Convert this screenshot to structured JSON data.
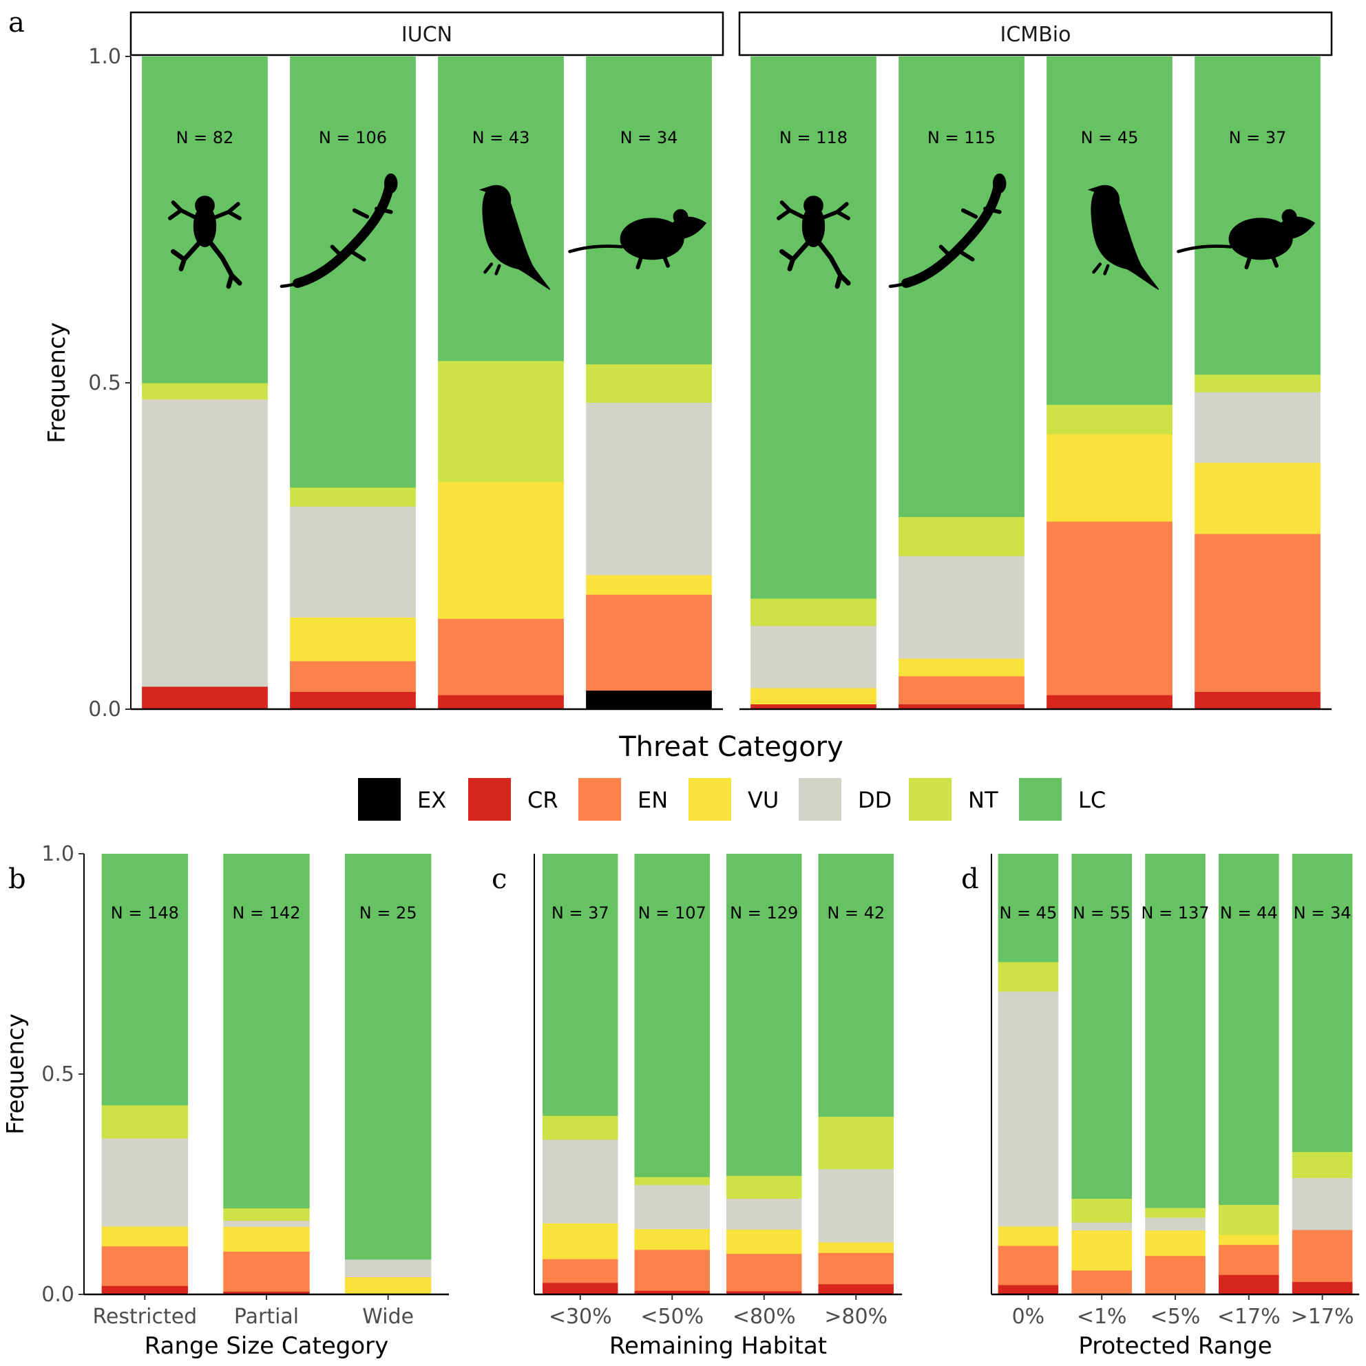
{
  "legend": {
    "entries": [
      {
        "key": "EX",
        "label": "EX",
        "color": "#000000"
      },
      {
        "key": "CR",
        "label": "CR",
        "color": "#d7261e"
      },
      {
        "key": "EN",
        "label": "EN",
        "color": "#fc814a"
      },
      {
        "key": "VU",
        "label": "VU",
        "color": "#f9e23c"
      },
      {
        "key": "DD",
        "label": "DD",
        "color": "#d3d3c8"
      },
      {
        "key": "NT",
        "label": "NT",
        "color": "#cde246"
      },
      {
        "key": "LC",
        "label": "LC",
        "color": "#67c264"
      }
    ]
  },
  "stack_order": [
    "EX",
    "CR",
    "EN",
    "VU",
    "DD",
    "NT",
    "LC"
  ],
  "icons": [
    "frog-icon",
    "lizard-icon",
    "bird-icon",
    "rodent-icon"
  ],
  "chart_data": [
    {
      "type": "bar",
      "stacked": true,
      "panel": "a",
      "ylabel": "Frequency",
      "xlabel": "Threat Category",
      "ylim": [
        0,
        1
      ],
      "yticks": [
        "0.0",
        "0.5",
        "1.0"
      ],
      "facets": [
        {
          "strip": "IUCN",
          "bars": [
            {
              "n_label": "N = 82",
              "icon": "frog-icon",
              "values": {
                "EX": 0,
                "CR": 0.035,
                "EN": 0,
                "VU": 0,
                "DD": 0.44,
                "NT": 0.025,
                "LC": 0.5
              }
            },
            {
              "n_label": "N = 106",
              "icon": "lizard-icon",
              "values": {
                "EX": 0,
                "CR": 0.027,
                "EN": 0.047,
                "VU": 0.067,
                "DD": 0.17,
                "NT": 0.029,
                "LC": 0.66
              }
            },
            {
              "n_label": "N = 43",
              "icon": "bird-icon",
              "values": {
                "EX": 0,
                "CR": 0.022,
                "EN": 0.117,
                "VU": 0.21,
                "DD": 0,
                "NT": 0.185,
                "LC": 0.466
              }
            },
            {
              "n_label": "N = 34",
              "icon": "rodent-icon",
              "values": {
                "EX": 0.029,
                "CR": 0,
                "EN": 0.147,
                "VU": 0.03,
                "DD": 0.264,
                "NT": 0.059,
                "LC": 0.471
              }
            }
          ]
        },
        {
          "strip": "ICMBio",
          "bars": [
            {
              "n_label": "N = 118",
              "icon": "frog-icon",
              "values": {
                "EX": 0,
                "CR": 0.008,
                "EN": 0,
                "VU": 0.025,
                "DD": 0.095,
                "NT": 0.042,
                "LC": 0.83
              }
            },
            {
              "n_label": "N = 115",
              "icon": "lizard-icon",
              "values": {
                "EX": 0,
                "CR": 0.008,
                "EN": 0.043,
                "VU": 0.027,
                "DD": 0.157,
                "NT": 0.06,
                "LC": 0.705
              }
            },
            {
              "n_label": "N = 45",
              "icon": "bird-icon",
              "values": {
                "EX": 0,
                "CR": 0.022,
                "EN": 0.266,
                "VU": 0.134,
                "DD": 0,
                "NT": 0.045,
                "LC": 0.533
              }
            },
            {
              "n_label": "N = 37",
              "icon": "rodent-icon",
              "values": {
                "EX": 0,
                "CR": 0.027,
                "EN": 0.242,
                "VU": 0.109,
                "DD": 0.108,
                "NT": 0.027,
                "LC": 0.487
              }
            }
          ]
        }
      ]
    },
    {
      "type": "bar",
      "stacked": true,
      "panel": "b",
      "ylabel": "Frequency",
      "xlabel": "Range Size Category",
      "ylim": [
        0,
        1
      ],
      "yticks": [
        "0.0",
        "0.5",
        "1.0"
      ],
      "categories": [
        "Restricted",
        "Partial",
        "Wide"
      ],
      "bars": [
        {
          "n_label": "N = 148",
          "values": {
            "EX": 0,
            "CR": 0.02,
            "EN": 0.09,
            "VU": 0.045,
            "DD": 0.2,
            "NT": 0.075,
            "LC": 0.57
          }
        },
        {
          "n_label": "N = 142",
          "values": {
            "EX": 0,
            "CR": 0.007,
            "EN": 0.091,
            "VU": 0.056,
            "DD": 0.014,
            "NT": 0.028,
            "LC": 0.804
          }
        },
        {
          "n_label": "N = 25",
          "values": {
            "EX": 0,
            "CR": 0,
            "EN": 0,
            "VU": 0.04,
            "DD": 0.04,
            "NT": 0,
            "LC": 0.92
          }
        }
      ]
    },
    {
      "type": "bar",
      "stacked": true,
      "panel": "c",
      "ylabel": "",
      "xlabel": "Remaining Habitat",
      "ylim": [
        0,
        1
      ],
      "categories": [
        "<30%",
        "<50%",
        "<80%",
        ">80%"
      ],
      "bars": [
        {
          "n_label": "N = 37",
          "values": {
            "EX": 0,
            "CR": 0.027,
            "EN": 0.054,
            "VU": 0.081,
            "DD": 0.19,
            "NT": 0.054,
            "LC": 0.594
          }
        },
        {
          "n_label": "N = 107",
          "values": {
            "EX": 0,
            "CR": 0.009,
            "EN": 0.093,
            "VU": 0.047,
            "DD": 0.1,
            "NT": 0.018,
            "LC": 0.733
          }
        },
        {
          "n_label": "N = 129",
          "values": {
            "EX": 0,
            "CR": 0.008,
            "EN": 0.085,
            "VU": 0.055,
            "DD": 0.07,
            "NT": 0.052,
            "LC": 0.73
          }
        },
        {
          "n_label": "N = 42",
          "values": {
            "EX": 0,
            "CR": 0.024,
            "EN": 0.071,
            "VU": 0.024,
            "DD": 0.166,
            "NT": 0.119,
            "LC": 0.596
          }
        }
      ]
    },
    {
      "type": "bar",
      "stacked": true,
      "panel": "d",
      "ylabel": "",
      "xlabel": "Protected Range",
      "ylim": [
        0,
        1
      ],
      "categories": [
        "0%",
        "<1%",
        "<5%",
        "<17%",
        ">17%"
      ],
      "bars": [
        {
          "n_label": "N = 45",
          "values": {
            "EX": 0,
            "CR": 0.022,
            "EN": 0.089,
            "VU": 0.044,
            "DD": 0.533,
            "NT": 0.067,
            "LC": 0.245
          }
        },
        {
          "n_label": "N = 55",
          "values": {
            "EX": 0,
            "CR": 0,
            "EN": 0.055,
            "VU": 0.091,
            "DD": 0.018,
            "NT": 0.054,
            "LC": 0.782
          }
        },
        {
          "n_label": "N = 137",
          "values": {
            "EX": 0,
            "CR": 0,
            "EN": 0.088,
            "VU": 0.058,
            "DD": 0.029,
            "NT": 0.022,
            "LC": 0.803
          }
        },
        {
          "n_label": "N = 44",
          "values": {
            "EX": 0,
            "CR": 0.045,
            "EN": 0.068,
            "VU": 0.023,
            "DD": 0,
            "NT": 0.068,
            "LC": 0.796
          }
        },
        {
          "n_label": "N = 34",
          "values": {
            "EX": 0,
            "CR": 0.029,
            "EN": 0.118,
            "VU": 0,
            "DD": 0.118,
            "NT": 0.059,
            "LC": 0.676
          }
        }
      ]
    }
  ]
}
